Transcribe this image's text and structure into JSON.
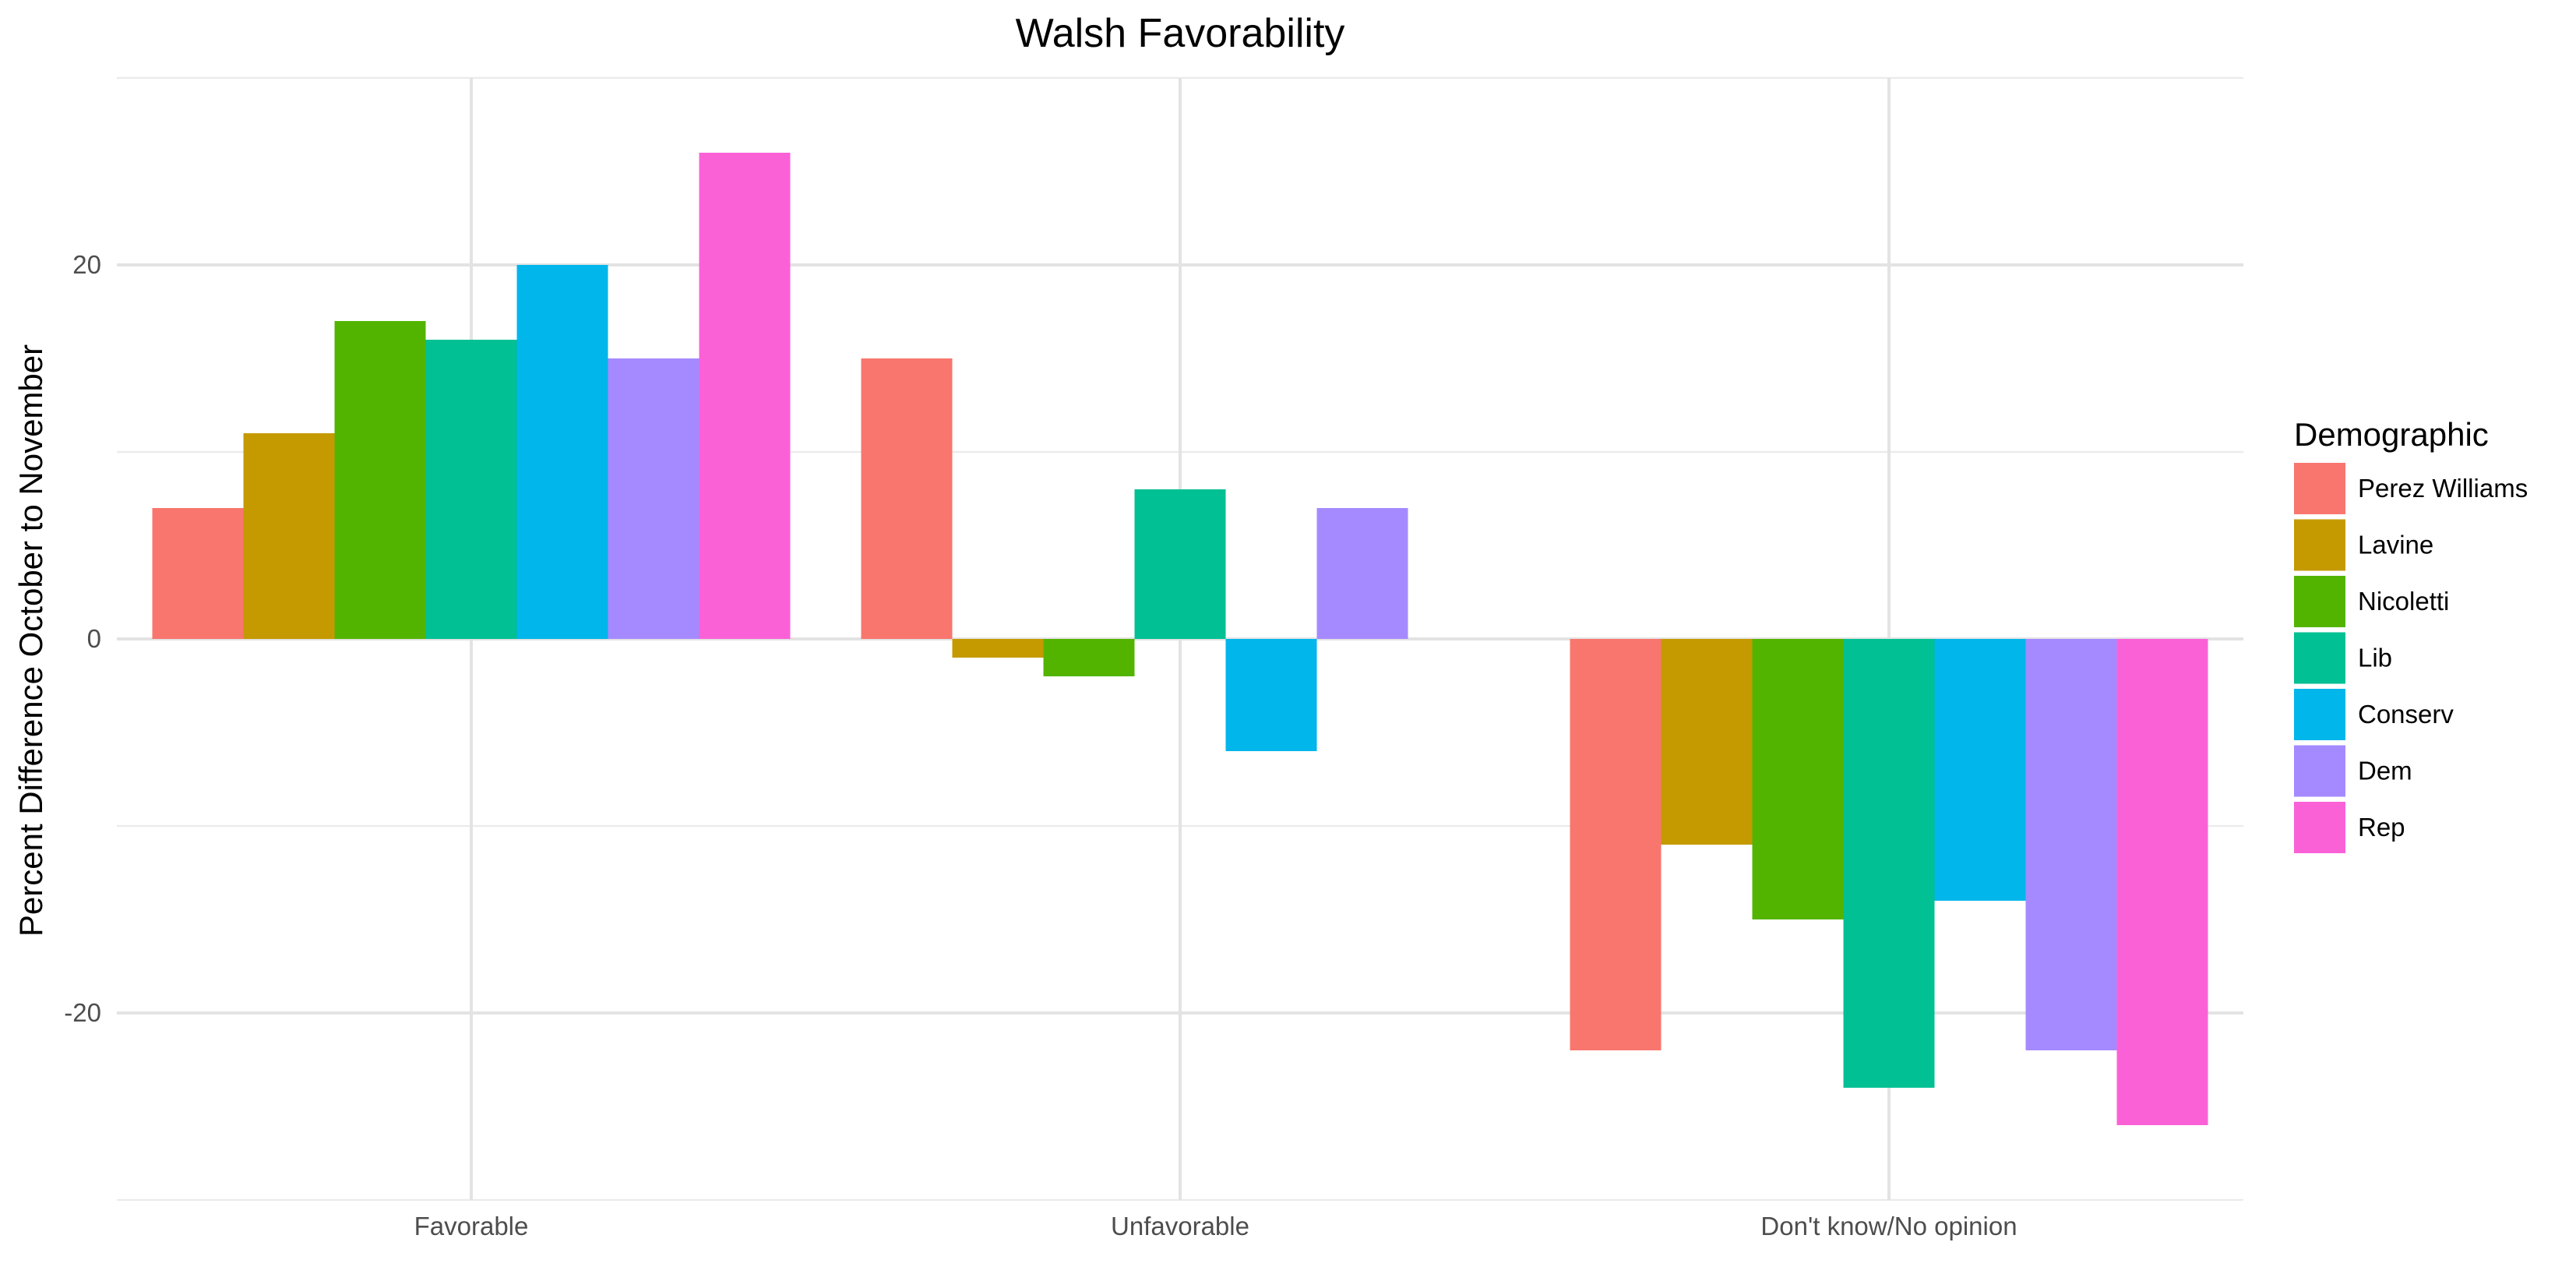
{
  "chart_data": {
    "type": "bar",
    "title": "Walsh Favorability",
    "xlabel": "",
    "ylabel": "Percent Difference October to November",
    "categories": [
      "Favorable",
      "Unfavorable",
      "Don't know/No opinion"
    ],
    "ylim": [
      -30,
      30
    ],
    "yticks": [
      -20,
      0,
      20
    ],
    "grid": true,
    "legend_title": "Demographic",
    "legend_position": "right",
    "series": [
      {
        "name": "Perez Williams",
        "color": "#F8766D",
        "values": [
          7,
          15,
          -22
        ]
      },
      {
        "name": "Lavine",
        "color": "#C49A00",
        "values": [
          11,
          -1,
          -11
        ]
      },
      {
        "name": "Nicoletti",
        "color": "#53B400",
        "values": [
          17,
          -2,
          -15
        ]
      },
      {
        "name": "Lib",
        "color": "#00C094",
        "values": [
          16,
          8,
          -24
        ]
      },
      {
        "name": "Conserv",
        "color": "#00B6EB",
        "values": [
          20,
          -6,
          -14
        ]
      },
      {
        "name": "Dem",
        "color": "#A58AFF",
        "values": [
          15,
          7,
          -22
        ]
      },
      {
        "name": "Rep",
        "color": "#FB61D7",
        "values": [
          26,
          null,
          -26
        ]
      }
    ]
  }
}
